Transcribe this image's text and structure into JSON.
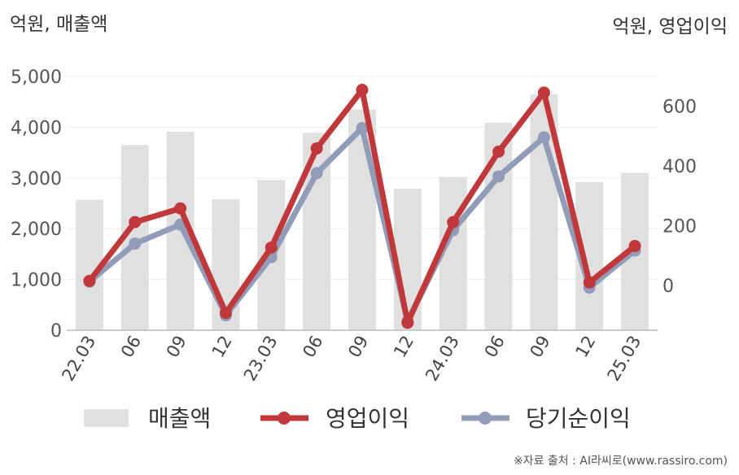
{
  "chart_data": {
    "type": "bar+line",
    "left_axis_unit": "억원, 매출액",
    "right_axis_unit": "억원, 영업이익",
    "categories": [
      "22.03",
      "06",
      "09",
      "12",
      "23.03",
      "06",
      "09",
      "12",
      "24.03",
      "06",
      "09",
      "12",
      "25.03"
    ],
    "left_ylim": [
      0,
      5000
    ],
    "left_ticks": [
      "0",
      "1,000",
      "2,000",
      "3,000",
      "4,000",
      "5,000"
    ],
    "right_ylim": [
      -150,
      700
    ],
    "right_ticks": [
      "0",
      "200",
      "400",
      "600"
    ],
    "series": [
      {
        "name": "매출액",
        "type": "bar",
        "axis": "left",
        "color": "#e0e0e0",
        "values": [
          2570,
          3650,
          3910,
          2580,
          2960,
          3890,
          4350,
          2790,
          3020,
          4090,
          4650,
          2920,
          3100
        ]
      },
      {
        "name": "영업이익",
        "type": "line",
        "axis": "right",
        "color": "#c0383a",
        "values": [
          15,
          212,
          258,
          -92,
          127,
          459,
          655,
          -125,
          212,
          448,
          646,
          10,
          132
        ]
      },
      {
        "name": "당기순이익",
        "type": "line",
        "axis": "right",
        "color": "#919cb8",
        "values": [
          13,
          140,
          204,
          -100,
          95,
          376,
          527,
          -120,
          185,
          365,
          496,
          -7,
          117
        ]
      }
    ],
    "grid": true,
    "legend_position": "bottom"
  },
  "footer": {
    "source": "※자료 출처 : AI라씨로(www.rassiro.com)"
  }
}
